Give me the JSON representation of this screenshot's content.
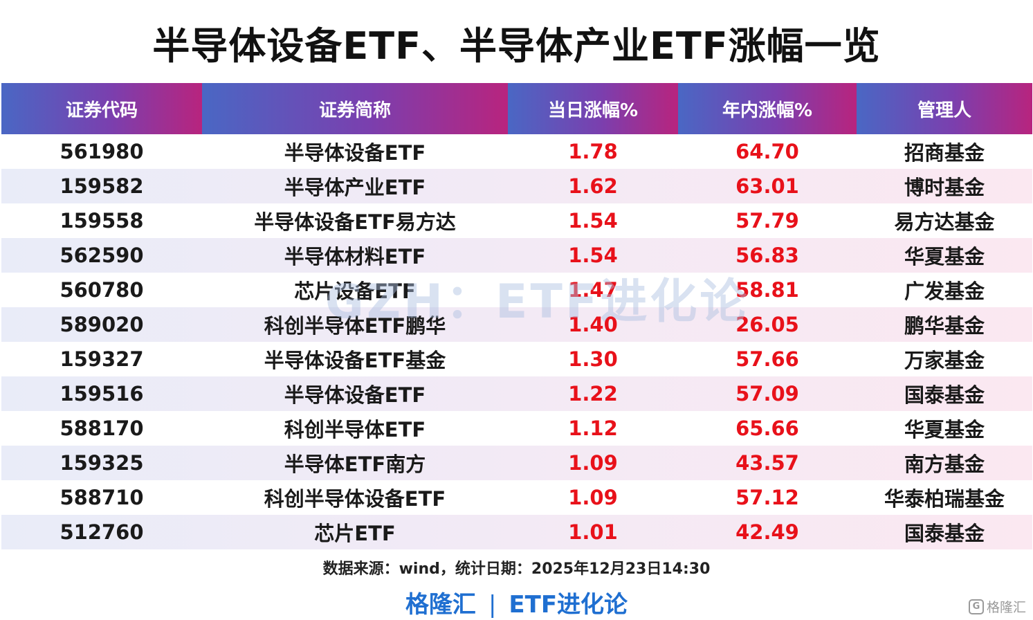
{
  "title": "半导体设备ETF、半导体产业ETF涨幅一览",
  "table": {
    "headers": [
      "证券代码",
      "证券简称",
      "当日涨幅%",
      "年内涨幅%",
      "管理人"
    ],
    "rows": [
      {
        "code": "561980",
        "name": "半导体设备ETF",
        "day": "1.78",
        "ytd": "64.70",
        "manager": "招商基金"
      },
      {
        "code": "159582",
        "name": "半导体产业ETF",
        "day": "1.62",
        "ytd": "63.01",
        "manager": "博时基金"
      },
      {
        "code": "159558",
        "name": "半导体设备ETF易方达",
        "day": "1.54",
        "ytd": "57.79",
        "manager": "易方达基金"
      },
      {
        "code": "562590",
        "name": "半导体材料ETF",
        "day": "1.54",
        "ytd": "56.83",
        "manager": "华夏基金"
      },
      {
        "code": "560780",
        "name": "芯片设备ETF",
        "day": "1.47",
        "ytd": "58.81",
        "manager": "广发基金"
      },
      {
        "code": "589020",
        "name": "科创半导体ETF鹏华",
        "day": "1.40",
        "ytd": "26.05",
        "manager": "鹏华基金"
      },
      {
        "code": "159327",
        "name": "半导体设备ETF基金",
        "day": "1.30",
        "ytd": "57.66",
        "manager": "万家基金"
      },
      {
        "code": "159516",
        "name": "半导体设备ETF",
        "day": "1.22",
        "ytd": "57.09",
        "manager": "国泰基金"
      },
      {
        "code": "588170",
        "name": "科创半导体ETF",
        "day": "1.12",
        "ytd": "65.66",
        "manager": "华夏基金"
      },
      {
        "code": "159325",
        "name": "半导体ETF南方",
        "day": "1.09",
        "ytd": "43.57",
        "manager": "南方基金"
      },
      {
        "code": "588710",
        "name": "科创半导体设备ETF",
        "day": "1.09",
        "ytd": "57.12",
        "manager": "华泰柏瑞基金"
      },
      {
        "code": "512760",
        "name": "芯片ETF",
        "day": "1.01",
        "ytd": "42.49",
        "manager": "国泰基金"
      }
    ]
  },
  "watermark": "GZH：ETF进化论",
  "source": "数据来源：wind，统计日期：2025年12月23日14:30",
  "footer": {
    "left": "格隆汇",
    "separator": "|",
    "right": "ETF进化论"
  },
  "logo": {
    "text": "格隆汇",
    "icon": "gelonghui-logo-icon"
  },
  "colors": {
    "positive": "#e8111a",
    "accent": "#1f6fd1"
  }
}
